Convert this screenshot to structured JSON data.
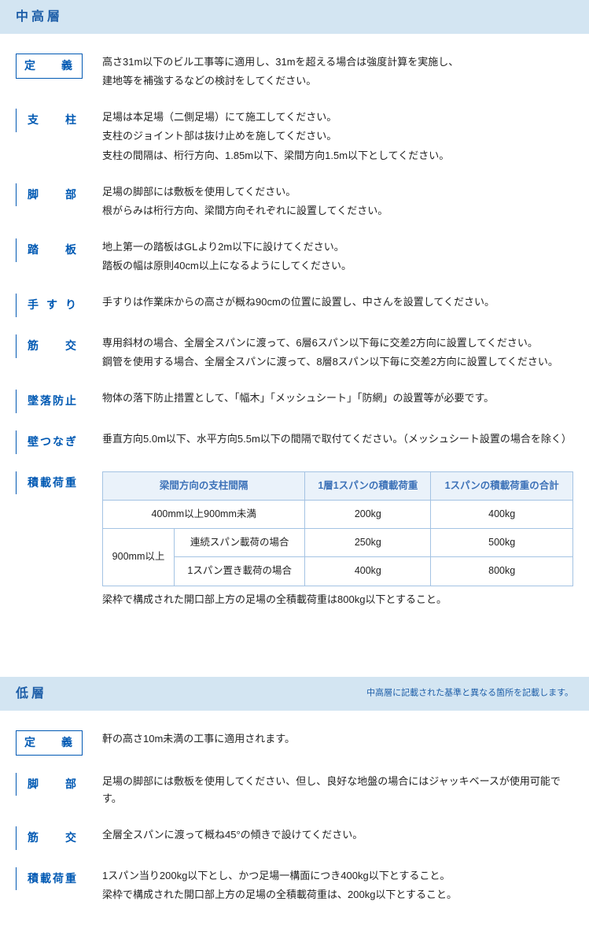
{
  "colors": {
    "header_bg": "#d3e5f2",
    "header_text": "#1d5ea8",
    "label_text": "#0059b3",
    "table_header_bg": "#eaf2fa",
    "table_header_text": "#3d72b8",
    "table_border": "#a4c3e3"
  },
  "section1": {
    "title": "中高層",
    "items": [
      {
        "label": "定義",
        "style": "outlined",
        "lines": [
          "高さ31m以下のビル工事等に適用し、31mを超える場合は強度計算を実施し、",
          "建地等を補強するなどの検討をしてください。"
        ]
      },
      {
        "label": "支柱",
        "style": "lined",
        "lines": [
          "足場は本足場（二側足場）にて施工してください。",
          "支柱のジョイント部は抜け止めを施してください。",
          "支柱の間隔は、桁行方向、1.85m以下、梁間方向1.5m以下としてください。"
        ]
      },
      {
        "label": "脚部",
        "style": "lined",
        "lines": [
          "足場の脚部には敷板を使用してください。",
          "根がらみは桁行方向、梁間方向それぞれに設置してください。"
        ]
      },
      {
        "label": "踏板",
        "style": "lined",
        "lines": [
          "地上第一の踏板はGLより2m以下に設けてください。",
          "踏板の幅は原則40cm以上になるようにしてください。"
        ]
      },
      {
        "label": "手すり",
        "style": "lined",
        "lines": [
          "手すりは作業床からの高さが概ね90cmの位置に設置し、中さんを設置してください。"
        ]
      },
      {
        "label": "筋交",
        "style": "lined",
        "lines": [
          "専用斜材の場合、全層全スパンに渡って、6層6スパン以下毎に交差2方向に設置してください。",
          "鋼管を使用する場合、全層全スパンに渡って、8層8スパン以下毎に交差2方向に設置してください。"
        ]
      },
      {
        "label": "墜落防止",
        "style": "lined",
        "lines": [
          "物体の落下防止措置として、「幅木」「メッシュシート」「防網」の設置等が必要です。"
        ]
      },
      {
        "label": "壁つなぎ",
        "style": "lined",
        "lines": [
          "垂直方向5.0m以下、水平方向5.5m以下の間隔で取付てください。（メッシュシート設置の場合を除く）"
        ]
      }
    ],
    "load_label": "積載荷重",
    "table": {
      "headers": [
        "梁間方向の支柱間隔",
        "1層1スパンの積載荷重",
        "1スパンの積載荷重の合計"
      ],
      "r1": {
        "span_col": "400mm以上900mm未満",
        "v1": "200kg",
        "v2": "400kg"
      },
      "r2_span": "900mm以上",
      "r2": {
        "case": "連続スパン載荷の場合",
        "v1": "250kg",
        "v2": "500kg"
      },
      "r3": {
        "case": "1スパン置き載荷の場合",
        "v1": "400kg",
        "v2": "800kg"
      },
      "note": "梁枠で構成された開口部上方の足場の全積載荷重は800kg以下とすること。"
    }
  },
  "section2": {
    "title": "低層",
    "note": "中高層に記載された基準と異なる箇所を記載します。",
    "items": [
      {
        "label": "定義",
        "style": "outlined",
        "lines": [
          "軒の高さ10m未満の工事に適用されます。"
        ]
      },
      {
        "label": "脚部",
        "style": "lined",
        "lines": [
          "足場の脚部には敷板を使用してください、但し、良好な地盤の場合にはジャッキベースが使用可能です。"
        ]
      },
      {
        "label": "筋交",
        "style": "lined",
        "lines": [
          "全層全スパンに渡って概ね45°の傾きで設けてください。"
        ]
      },
      {
        "label": "積載荷重",
        "style": "lined",
        "lines": [
          "1スパン当り200kg以下とし、かつ足場一構面につき400kg以下とすること。",
          "梁枠で構成された開口部上方の足場の全積載荷重は、200kg以下とすること。"
        ]
      }
    ]
  }
}
